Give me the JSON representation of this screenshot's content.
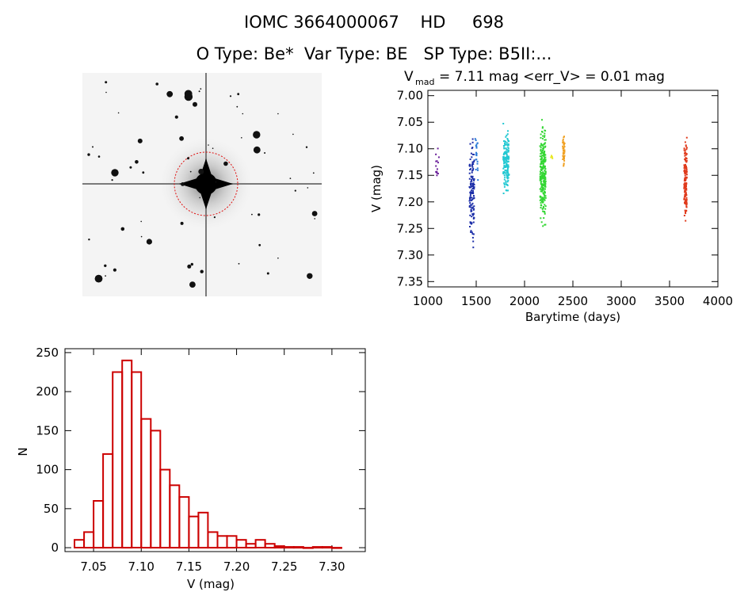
{
  "header": {
    "title_line1": "IOMC 3664000067    HD     698",
    "title_line2": "O Type: Be*  Var Type: BE   SP Type: B5II:..."
  },
  "chart_data": [
    {
      "type": "scatter",
      "title": "V_mad = 7.11 mag <err_V> = 0.01 mag",
      "title_main": "V",
      "title_sub": "mad",
      "title_rest": " = 7.11 mag <err_V> = 0.01 mag",
      "xlabel": "Barytime (days)",
      "ylabel": "V (mag)",
      "xlim": [
        1000,
        4000
      ],
      "ylim": [
        7.36,
        6.99
      ],
      "xticks": [
        "1000",
        "1500",
        "2000",
        "2500",
        "3000",
        "3500",
        "4000"
      ],
      "yticks": [
        "7.00",
        "7.05",
        "7.10",
        "7.15",
        "7.20",
        "7.25",
        "7.30",
        "7.35"
      ],
      "series": [
        {
          "color": "#6a1f9a",
          "x_range": [
            1080,
            1115
          ],
          "y_range": [
            7.09,
            7.175
          ],
          "count": 14
        },
        {
          "color": "#1c2ea8",
          "x_range": [
            1430,
            1480
          ],
          "y_range": [
            7.05,
            7.31
          ],
          "count": 130
        },
        {
          "color": "#2a7ad8",
          "x_range": [
            1490,
            1520
          ],
          "y_range": [
            7.04,
            7.18
          ],
          "count": 20
        },
        {
          "color": "#22c8d2",
          "x_range": [
            1780,
            1840
          ],
          "y_range": [
            7.04,
            7.2
          ],
          "count": 150
        },
        {
          "color": "#33d633",
          "x_range": [
            2160,
            2220
          ],
          "y_range": [
            7.03,
            7.27
          ],
          "count": 260
        },
        {
          "color": "#e8e820",
          "x_range": [
            2270,
            2290
          ],
          "y_range": [
            7.11,
            7.12
          ],
          "count": 5
        },
        {
          "color": "#f0a020",
          "x_range": [
            2395,
            2415
          ],
          "y_range": [
            7.06,
            7.145
          ],
          "count": 40
        },
        {
          "color": "#e03a1c",
          "x_range": [
            3650,
            3680
          ],
          "y_range": [
            7.06,
            7.26
          ],
          "count": 140
        }
      ]
    },
    {
      "type": "bar",
      "xlabel": "V (mag)",
      "ylabel": "N",
      "xlim": [
        7.02,
        7.335
      ],
      "ylim": [
        -5,
        255
      ],
      "bin_width": 0.01,
      "bin_starts": [
        7.03,
        7.04,
        7.05,
        7.06,
        7.07,
        7.08,
        7.09,
        7.1,
        7.11,
        7.12,
        7.13,
        7.14,
        7.15,
        7.16,
        7.17,
        7.18,
        7.19,
        7.2,
        7.21,
        7.22,
        7.23,
        7.24,
        7.25,
        7.26,
        7.27,
        7.28,
        7.29,
        7.3
      ],
      "values": [
        10,
        20,
        60,
        120,
        225,
        240,
        225,
        165,
        150,
        100,
        80,
        65,
        40,
        45,
        20,
        15,
        15,
        10,
        5,
        10,
        5,
        2,
        1,
        1,
        0,
        1,
        1,
        0
      ],
      "xticks": [
        "7.05",
        "7.10",
        "7.15",
        "7.20",
        "7.25",
        "7.30"
      ],
      "yticks": [
        "0",
        "50",
        "100",
        "150",
        "200",
        "250"
      ],
      "bar_color": "#cc0000"
    }
  ]
}
